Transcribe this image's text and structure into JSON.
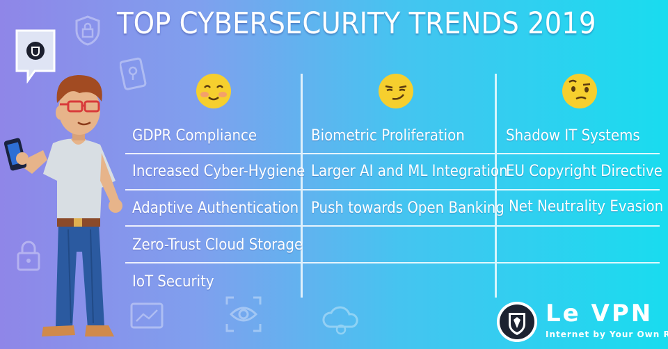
{
  "title": "TOP CYBERSECURITY TRENDS 2019",
  "columns": [
    {
      "emoji": "blushing-smile-emoji",
      "items": [
        "GDPR Compliance",
        "Increased Cyber-Hygiene",
        "Adaptive Authentication",
        "Zero-Trust Cloud Storage",
        "IoT Security"
      ]
    },
    {
      "emoji": "smirking-emoji",
      "items": [
        "Biometric Proliferation",
        "Larger AI and ML Integration",
        "Push towards Open Banking"
      ]
    },
    {
      "emoji": "thinking-raised-eyebrow-emoji",
      "items": [
        "Shadow IT Systems",
        "EU Copyright Directive",
        "Net Neutrality Evasion"
      ]
    }
  ],
  "logo": {
    "name": "Le VPN",
    "tagline": "Internet by Your Own Rules"
  },
  "colors": {
    "gradient_left": "#8f86e8",
    "gradient_right": "#19dcef",
    "emoji_yellow": "#f6cf2e",
    "text": "#ffffff"
  }
}
